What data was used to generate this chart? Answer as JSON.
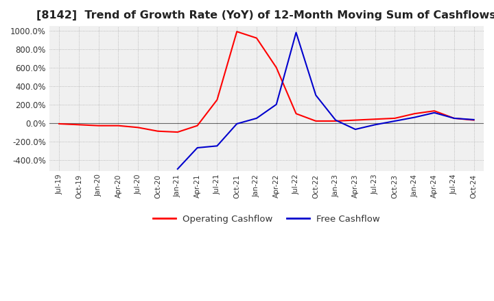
{
  "title": "[8142]  Trend of Growth Rate (YoY) of 12-Month Moving Sum of Cashflows",
  "title_fontsize": 11.5,
  "ylim": [
    -520,
    1050
  ],
  "yticks": [
    -400,
    -200,
    0,
    200,
    400,
    600,
    800,
    1000
  ],
  "background_color": "#ffffff",
  "plot_bg_color": "#f0f0f0",
  "grid_color": "#aaaaaa",
  "operating_color": "#ff0000",
  "free_color": "#0000cd",
  "x_labels": [
    "Jul-19",
    "Oct-19",
    "Jan-20",
    "Apr-20",
    "Jul-20",
    "Oct-20",
    "Jan-21",
    "Apr-21",
    "Jul-21",
    "Oct-21",
    "Jan-22",
    "Apr-22",
    "Jul-22",
    "Oct-22",
    "Jan-23",
    "Apr-23",
    "Jul-23",
    "Oct-23",
    "Jan-24",
    "Apr-24",
    "Jul-24",
    "Oct-24"
  ],
  "operating_cashflow": [
    -10,
    -20,
    -30,
    -30,
    -50,
    -90,
    -100,
    -30,
    250,
    990,
    920,
    600,
    100,
    20,
    20,
    30,
    40,
    50,
    100,
    130,
    50,
    30
  ],
  "free_cashflow": [
    null,
    null,
    null,
    null,
    null,
    null,
    -500,
    -270,
    -250,
    -10,
    50,
    200,
    980,
    300,
    30,
    -70,
    -20,
    20,
    60,
    110,
    50,
    35
  ]
}
